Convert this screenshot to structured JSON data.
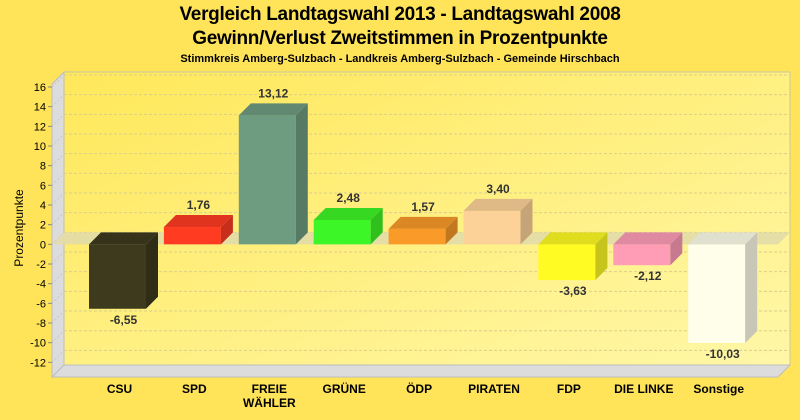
{
  "chart_data": {
    "type": "bar",
    "title": "Vergleich Landtagswahl 2013 - Landtagswahl 2008",
    "subtitle": "Gewinn/Verlust Zweitstimmen in Prozentpunkte",
    "subsubtitle": "Stimmkreis Amberg-Sulzbach - Landkreis Amberg-Sulzbach - Gemeinde Hirschbach",
    "xlabel": "",
    "ylabel": "Prozentpunkte",
    "ylim": [
      -13,
      17
    ],
    "yticks": [
      16,
      14,
      12,
      10,
      8,
      6,
      4,
      2,
      0,
      -2,
      -4,
      -6,
      -8,
      -10,
      -12
    ],
    "grid": true,
    "categories": [
      "CSU",
      "SPD",
      "FREIE WÄHLER",
      "GRÜNE",
      "ÖDP",
      "PIRATEN",
      "FDP",
      "DIE LINKE",
      "Sonstige"
    ],
    "category_lines": [
      [
        "CSU"
      ],
      [
        "SPD"
      ],
      [
        "FREIE",
        "WÄHLER"
      ],
      [
        "GRÜNE"
      ],
      [
        "ÖDP"
      ],
      [
        "PIRATEN"
      ],
      [
        "FDP"
      ],
      [
        "DIE LINKE"
      ],
      [
        "Sonstige"
      ]
    ],
    "values": [
      -6.55,
      1.76,
      13.12,
      2.48,
      1.57,
      3.4,
      -3.63,
      -2.12,
      -10.03
    ],
    "value_labels": [
      "-6,55",
      "1,76",
      "13,12",
      "2,48",
      "1,57",
      "3,40",
      "-3,63",
      "-2,12",
      "-10,03"
    ],
    "colors": [
      "#3D3A1E",
      "#FF3B22",
      "#6E9C80",
      "#3DF627",
      "#F99A29",
      "#FDD298",
      "#FFFB23",
      "#FF9DB7",
      "#FFFEEA"
    ]
  }
}
